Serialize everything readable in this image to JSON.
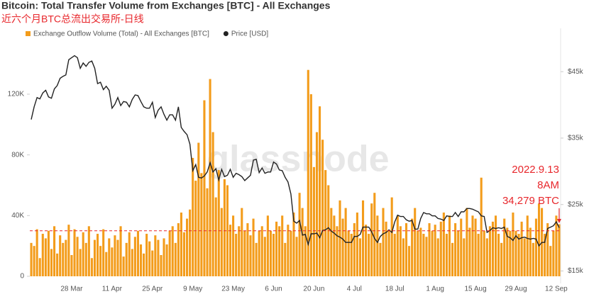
{
  "chart_data": {
    "type": "bar-line",
    "title": "Bitcoin: Total Transfer Volume from Exchanges [BTC] - All Exchanges",
    "subtitle": "近六个月BTC总流出交易所-日线",
    "watermark": "glassnode",
    "annotation": [
      "2022.9.13",
      "8AM",
      "34,279 BTC"
    ],
    "annotation_color": "#e8272c",
    "reference_line": {
      "value": 30000,
      "color": "#e8272c"
    },
    "categories": [
      null,
      null,
      null,
      null,
      null,
      null,
      null,
      null,
      null,
      null,
      null,
      null,
      null,
      null,
      "28 Mar",
      null,
      null,
      null,
      null,
      null,
      null,
      null,
      null,
      null,
      null,
      null,
      null,
      null,
      "11 Apr",
      null,
      null,
      null,
      null,
      null,
      null,
      null,
      null,
      null,
      null,
      null,
      null,
      null,
      "25 Apr",
      null,
      null,
      null,
      null,
      null,
      null,
      null,
      null,
      null,
      null,
      null,
      null,
      null,
      "9 May",
      null,
      null,
      null,
      null,
      null,
      null,
      null,
      null,
      null,
      null,
      null,
      null,
      null,
      "23 May",
      null,
      null,
      null,
      null,
      null,
      null,
      null,
      null,
      null,
      null,
      null,
      null,
      null,
      "6 Jun",
      null,
      null,
      null,
      null,
      null,
      null,
      null,
      null,
      null,
      null,
      null,
      null,
      null,
      "20 Jun",
      null,
      null,
      null,
      null,
      null,
      null,
      null,
      null,
      null,
      null,
      null,
      null,
      null,
      "4 Jul",
      null,
      null,
      null,
      null,
      null,
      null,
      null,
      null,
      null,
      null,
      null,
      null,
      null,
      "18 Jul",
      null,
      null,
      null,
      null,
      null,
      null,
      null,
      null,
      null,
      null,
      null,
      null,
      null,
      "1 Aug",
      null,
      null,
      null,
      null,
      null,
      null,
      null,
      null,
      null,
      null,
      null,
      null,
      null,
      "15 Aug",
      null,
      null,
      null,
      null,
      null,
      null,
      null,
      null,
      null,
      null,
      null,
      null,
      null,
      "29 Aug",
      null,
      null,
      null,
      null,
      null,
      null,
      null,
      null,
      null,
      null,
      null,
      null,
      null,
      "12 Sep",
      null
    ],
    "series": [
      {
        "name": "Exchange Outflow Volume (Total) - All Exchanges [BTC]",
        "type": "bar",
        "color": "#f39c1b",
        "values": [
          22000,
          20000,
          31000,
          12000,
          28000,
          25000,
          30000,
          18000,
          33000,
          15000,
          27000,
          22000,
          24000,
          34000,
          14000,
          31000,
          26000,
          18000,
          29000,
          22000,
          33000,
          12000,
          24000,
          28000,
          20000,
          31000,
          16000,
          25000,
          19000,
          27000,
          24000,
          33000,
          13000,
          22000,
          29000,
          18000,
          26000,
          30000,
          21000,
          15000,
          28000,
          23000,
          17000,
          27000,
          24000,
          14000,
          25000,
          21000,
          30000,
          33000,
          22000,
          35000,
          42000,
          29000,
          38000,
          44000,
          78000,
          63000,
          88000,
          68000,
          116000,
          58000,
          130000,
          95000,
          52000,
          70000,
          45000,
          64000,
          60000,
          34000,
          40000,
          28000,
          33000,
          45000,
          30000,
          35000,
          27000,
          38000,
          22000,
          30000,
          33000,
          26000,
          40000,
          30000,
          28000,
          36000,
          33000,
          40000,
          22000,
          34000,
          30000,
          42000,
          26000,
          55000,
          45000,
          33000,
          136000,
          120000,
          72000,
          95000,
          112000,
          90000,
          70000,
          60000,
          45000,
          40000,
          33000,
          50000,
          38000,
          45000,
          30000,
          28000,
          35000,
          42000,
          25000,
          50000,
          34000,
          28000,
          48000,
          55000,
          40000,
          22000,
          45000,
          36000,
          30000,
          52000,
          28000,
          40000,
          33000,
          25000,
          35000,
          20000,
          38000,
          45000,
          30000,
          32000,
          28000,
          26000,
          35000,
          30000,
          34000,
          25000,
          36000,
          42000,
          28000,
          40000,
          22000,
          35000,
          30000,
          38000,
          25000,
          45000,
          32000,
          40000,
          38000,
          28000,
          65000,
          30000,
          25000,
          33000,
          36000,
          40000,
          28000,
          22000,
          38000,
          32000,
          30000,
          42000,
          30000,
          28000,
          36000,
          25000,
          40000,
          32000,
          22000,
          38000,
          48000,
          45000,
          28000,
          35000,
          20000,
          30000,
          40000,
          34279
        ]
      },
      {
        "name": "Price [USD]",
        "type": "line",
        "axis": "y2",
        "color": "#222222",
        "values": [
          37800,
          39700,
          41100,
          40900,
          41800,
          42200,
          41200,
          41000,
          42400,
          42900,
          44000,
          44300,
          44500,
          46800,
          47100,
          47400,
          47100,
          45500,
          46300,
          45800,
          46400,
          46600,
          45500,
          43200,
          43400,
          42300,
          42800,
          42200,
          39500,
          40100,
          41100,
          39900,
          40500,
          40400,
          39700,
          40800,
          41500,
          41400,
          40500,
          39700,
          39500,
          39500,
          40400,
          38100,
          39200,
          39700,
          38600,
          37700,
          38500,
          38500,
          37700,
          39700,
          36600,
          36000,
          35500,
          34100,
          30100,
          31000,
          29100,
          29000,
          29300,
          29900,
          31300,
          29900,
          30400,
          28700,
          30300,
          29200,
          29400,
          30300,
          29100,
          29700,
          29500,
          29200,
          28600,
          29000,
          29400,
          31700,
          31800,
          29800,
          30500,
          29700,
          29900,
          29900,
          31400,
          31100,
          30200,
          30100,
          29100,
          28400,
          26600,
          22500,
          22200,
          22600,
          20400,
          20500,
          19000,
          20600,
          20600,
          20700,
          20000,
          21100,
          21200,
          21500,
          21000,
          20700,
          20300,
          20100,
          19800,
          19300,
          19300,
          19300,
          20200,
          20200,
          20500,
          21600,
          21600,
          21600,
          20900,
          19900,
          19300,
          20200,
          20600,
          20800,
          21200,
          20800,
          22400,
          23400,
          23200,
          23200,
          22700,
          22500,
          22600,
          21300,
          21300,
          22900,
          23800,
          23600,
          23600,
          23300,
          23300,
          22900,
          22800,
          22600,
          23300,
          23200,
          23200,
          23800,
          23200,
          23900,
          23900,
          24400,
          24400,
          24300,
          24100,
          23900,
          23300,
          23200,
          20800,
          21100,
          21500,
          21400,
          21500,
          21400,
          21600,
          20200,
          20000,
          19600,
          20300,
          19800,
          20000,
          20100,
          19900,
          19800,
          19900,
          19800,
          18800,
          19300,
          19300,
          21400,
          21600,
          21800,
          22400,
          21500
        ]
      }
    ],
    "ylim": [
      0,
      155000
    ],
    "yticks": [
      0,
      {
        "value": 40000,
        "label": "40K"
      },
      {
        "value": 80000,
        "label": "80K"
      },
      {
        "value": 120000,
        "label": "120K"
      }
    ],
    "y2lim": [
      14200,
      49600
    ],
    "y2ticks": [
      {
        "value": 15000,
        "label": "$15k"
      },
      {
        "value": 25000,
        "label": "$25k"
      },
      {
        "value": 35000,
        "label": "$35k"
      },
      {
        "value": 45000,
        "label": "$45k"
      }
    ],
    "grid": false
  }
}
